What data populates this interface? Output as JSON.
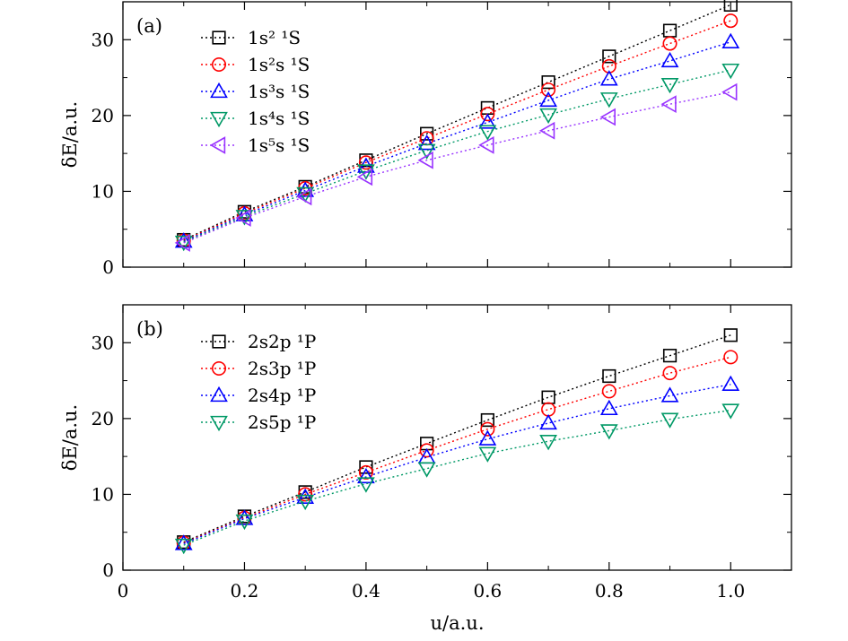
{
  "chart_data": [
    {
      "type": "line",
      "panel_label": "(a)",
      "ylabel": "δE/a.u.",
      "xlabel": "",
      "xlim": [
        0,
        1.1
      ],
      "ylim": [
        0,
        35
      ],
      "xticks": [
        0,
        0.2,
        0.4,
        0.6,
        0.8,
        1.0
      ],
      "xtick_labels": [
        "0",
        "0.2",
        "0.4",
        "0.6",
        "0.8",
        "1.0"
      ],
      "yticks": [
        0,
        10,
        20,
        30
      ],
      "ytick_labels": [
        "0",
        "10",
        "20",
        "30"
      ],
      "show_x_tick_labels": false,
      "legend_position": "top-left",
      "x": [
        0.1,
        0.2,
        0.3,
        0.4,
        0.5,
        0.6,
        0.7,
        0.8,
        0.9,
        1.0
      ],
      "series": [
        {
          "name": "1s² ¹S",
          "marker": "square",
          "color": "#000000",
          "values": [
            3.6,
            7.3,
            10.6,
            14.1,
            17.6,
            21.0,
            24.4,
            27.8,
            31.2,
            34.6
          ]
        },
        {
          "name": "1s²s ¹S",
          "marker": "circle",
          "color": "#ff0000",
          "values": [
            3.5,
            7.1,
            10.4,
            13.8,
            17.0,
            20.2,
            23.4,
            26.5,
            29.5,
            32.5
          ]
        },
        {
          "name": "1s³s ¹S",
          "marker": "triangle-up",
          "color": "#0000ff",
          "values": [
            3.4,
            6.9,
            10.1,
            13.3,
            16.3,
            19.1,
            22.0,
            24.8,
            27.2,
            29.7
          ]
        },
        {
          "name": "1s⁴s ¹S",
          "marker": "triangle-down",
          "color": "#009966",
          "values": [
            3.3,
            6.7,
            9.7,
            12.7,
            15.4,
            17.9,
            20.1,
            22.2,
            24.1,
            26.0
          ]
        },
        {
          "name": "1s⁵s ¹S",
          "marker": "triangle-left",
          "color": "#9933ff",
          "values": [
            3.2,
            6.5,
            9.3,
            11.9,
            14.1,
            16.1,
            18.0,
            19.8,
            21.5,
            23.1
          ]
        }
      ]
    },
    {
      "type": "line",
      "panel_label": "(b)",
      "ylabel": "δE/a.u.",
      "xlabel": "u/a.u.",
      "xlim": [
        0,
        1.1
      ],
      "ylim": [
        0,
        35
      ],
      "xticks": [
        0,
        0.2,
        0.4,
        0.6,
        0.8,
        1.0
      ],
      "xtick_labels": [
        "0",
        "0.2",
        "0.4",
        "0.6",
        "0.8",
        "1.0"
      ],
      "yticks": [
        0,
        10,
        20,
        30
      ],
      "ytick_labels": [
        "0",
        "10",
        "20",
        "30"
      ],
      "show_x_tick_labels": true,
      "legend_position": "top-left",
      "x": [
        0.1,
        0.2,
        0.3,
        0.4,
        0.5,
        0.6,
        0.7,
        0.8,
        0.9,
        1.0
      ],
      "series": [
        {
          "name": "2s2p ¹P",
          "marker": "square",
          "color": "#000000",
          "values": [
            3.7,
            7.1,
            10.3,
            13.6,
            16.7,
            19.8,
            22.8,
            25.6,
            28.3,
            31.0
          ]
        },
        {
          "name": "2s3p ¹P",
          "marker": "circle",
          "color": "#ff0000",
          "values": [
            3.6,
            6.9,
            10.0,
            12.9,
            15.8,
            18.6,
            21.2,
            23.6,
            26.0,
            28.1
          ]
        },
        {
          "name": "2s4p ¹P",
          "marker": "triangle-up",
          "color": "#0000ff",
          "values": [
            3.5,
            6.8,
            9.6,
            12.3,
            14.9,
            17.3,
            19.4,
            21.3,
            23.0,
            24.5
          ]
        },
        {
          "name": "2s5p ¹P",
          "marker": "triangle-down",
          "color": "#009966",
          "values": [
            3.3,
            6.5,
            9.1,
            11.4,
            13.4,
            15.4,
            17.0,
            18.4,
            19.9,
            21.1
          ]
        }
      ]
    }
  ]
}
